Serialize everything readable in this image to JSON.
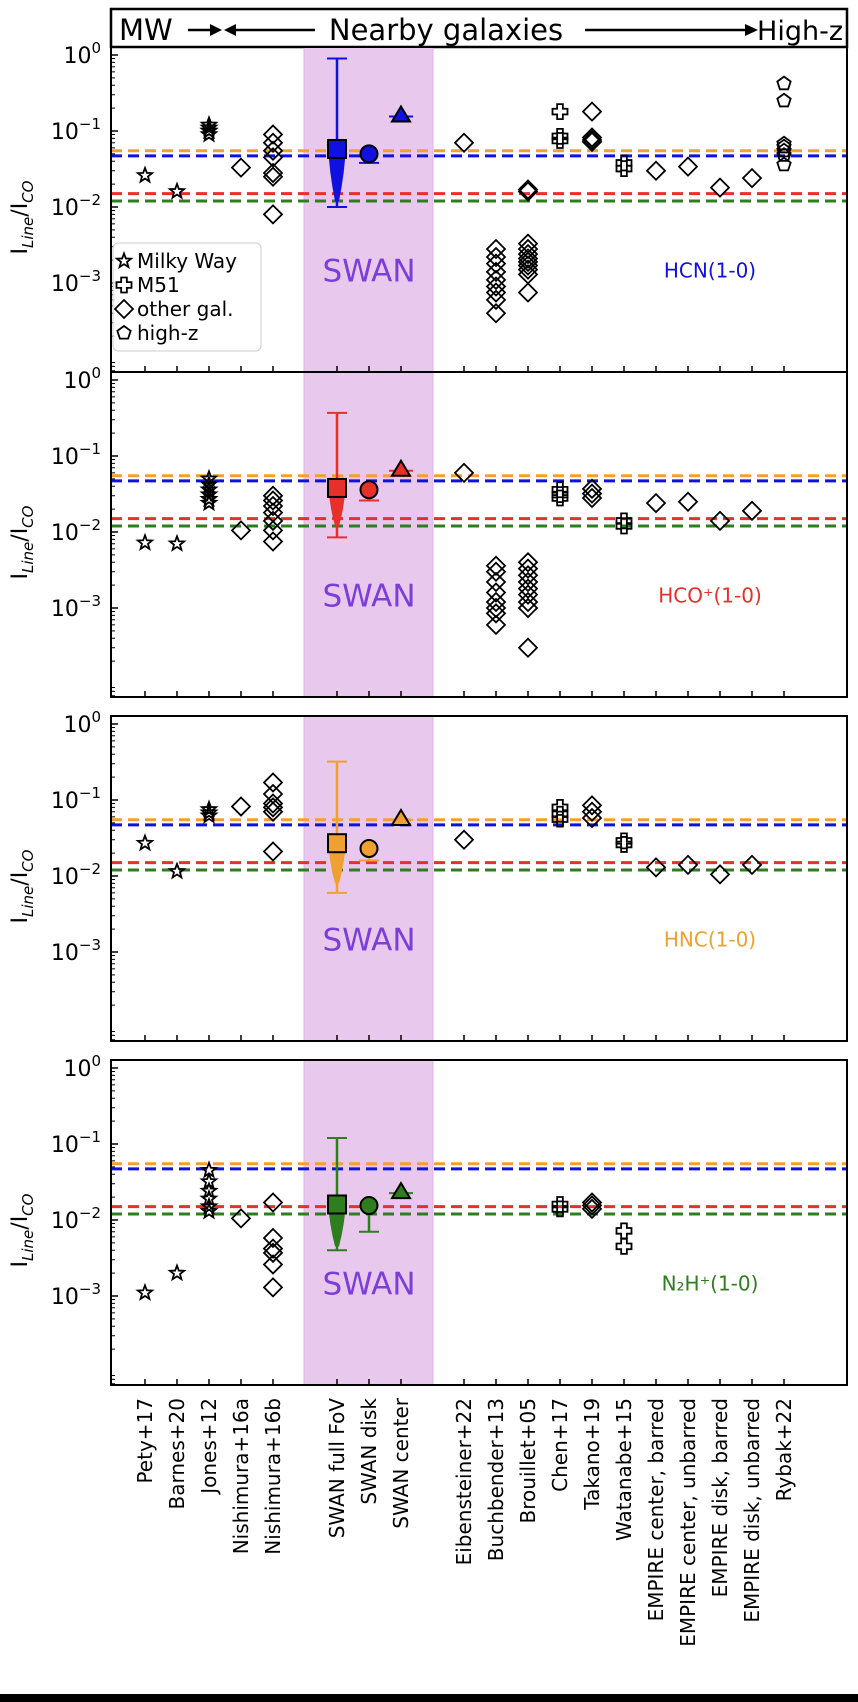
{
  "header": {
    "mw_label": "MW",
    "nearby_label": "Nearby galaxies",
    "highz_label": "High-z"
  },
  "legend": {
    "items": [
      {
        "marker": "star",
        "label": "Milky Way"
      },
      {
        "marker": "cross",
        "label": "M51"
      },
      {
        "marker": "diamond",
        "label": "other gal."
      },
      {
        "marker": "pentagon",
        "label": "high-z"
      }
    ]
  },
  "colors": {
    "hcn": "#1010e0",
    "hcop": "#e8302a",
    "hnc": "#f0a030",
    "n2hp": "#2e7d1e",
    "swan_band": "#e9c8ee",
    "swan_text": "#7b3ed8"
  },
  "chart_data": [
    {
      "type": "scatter",
      "ylabel": "I_Line/I_CO",
      "yscale": "log",
      "ylim": [
        0.00025,
        1.4
      ],
      "yticks": [
        "10^0",
        "10^-1",
        "10^-2",
        "10^-3"
      ],
      "line_label": "HCN(1-0)",
      "line_color": "#1010e0",
      "swan_label": "SWAN",
      "categories": [
        "Pety+17",
        "Barnes+20",
        "Jones+12",
        "Nishimura+16a",
        "Nishimura+16b",
        "SWAN full FoV",
        "SWAN disk",
        "SWAN center",
        "Eibensteiner+22",
        "Buchbender+13",
        "Brouillet+05",
        "Chen+17",
        "Takano+19",
        "Watanabe+15",
        "EMPIRE center, barred",
        "EMPIRE center, unbarred",
        "EMPIRE disk, barred",
        "EMPIRE disk, unbarred",
        "Rybak+22"
      ],
      "reference_lines": [
        {
          "color": "#f0a030",
          "value": 0.055
        },
        {
          "color": "#1010e0",
          "value": 0.047
        },
        {
          "color": "#e8302a",
          "value": 0.015
        },
        {
          "color": "#2e7d1e",
          "value": 0.012
        }
      ],
      "points": [
        {
          "cat": 0,
          "marker": "star",
          "values": [
            0.026
          ]
        },
        {
          "cat": 1,
          "marker": "star",
          "values": [
            0.016
          ]
        },
        {
          "cat": 2,
          "marker": "star",
          "values": [
            0.09,
            0.1,
            0.11,
            0.12,
            0.1
          ]
        },
        {
          "cat": 3,
          "marker": "diamond",
          "values": [
            0.033
          ]
        },
        {
          "cat": 4,
          "marker": "diamond",
          "values": [
            0.09,
            0.07,
            0.055,
            0.045,
            0.028,
            0.025,
            0.008
          ]
        },
        {
          "cat": 8,
          "marker": "diamond",
          "values": [
            0.07
          ]
        },
        {
          "cat": 9,
          "marker": "diamond",
          "values": [
            0.0028,
            0.0022,
            0.0018,
            0.0014,
            0.0011,
            0.0009,
            0.00075,
            0.0006,
            0.0004
          ]
        },
        {
          "cat": 10,
          "marker": "diamond",
          "values": [
            0.017,
            0.016,
            0.0033,
            0.0028,
            0.0024,
            0.0021,
            0.0019,
            0.0017,
            0.0015,
            0.0013,
            0.00075
          ]
        },
        {
          "cat": 11,
          "marker": "cross",
          "values": [
            0.18,
            0.085,
            0.075
          ]
        },
        {
          "cat": 12,
          "marker": "diamond",
          "values": [
            0.18,
            0.082,
            0.076,
            0.072
          ]
        },
        {
          "cat": 13,
          "marker": "cross",
          "values": [
            0.038,
            0.032
          ]
        },
        {
          "cat": 14,
          "marker": "diamond",
          "values": [
            0.03
          ]
        },
        {
          "cat": 15,
          "marker": "diamond",
          "values": [
            0.034
          ]
        },
        {
          "cat": 16,
          "marker": "diamond",
          "values": [
            0.018
          ]
        },
        {
          "cat": 17,
          "marker": "diamond",
          "values": [
            0.024
          ]
        },
        {
          "cat": 18,
          "marker": "pentagon",
          "values": [
            0.42,
            0.25,
            0.068,
            0.062,
            0.055,
            0.048,
            0.036
          ]
        }
      ],
      "swan": {
        "fov": {
          "value": 0.058,
          "err_high": 0.9,
          "err_low": 0.01,
          "violin_low": 0.012,
          "violin_high": 0.07
        },
        "disk": {
          "value": 0.05,
          "err_low": 0.038
        },
        "center": {
          "value": 0.165,
          "err": 0.165
        }
      }
    },
    {
      "type": "scatter",
      "ylabel": "I_Line/I_CO",
      "yscale": "log",
      "ylim": [
        0.00025,
        1.4
      ],
      "yticks": [
        "10^0",
        "10^-1",
        "10^-2",
        "10^-3"
      ],
      "line_label": "HCO⁺(1-0)",
      "line_color": "#e8302a",
      "swan_label": "SWAN",
      "categories": [
        "Pety+17",
        "Barnes+20",
        "Jones+12",
        "Nishimura+16a",
        "Nishimura+16b",
        "SWAN full FoV",
        "SWAN disk",
        "SWAN center",
        "Eibensteiner+22",
        "Buchbender+13",
        "Brouillet+05",
        "Chen+17",
        "Takano+19",
        "Watanabe+15",
        "EMPIRE center, barred",
        "EMPIRE center, unbarred",
        "EMPIRE disk, barred",
        "EMPIRE disk, unbarred",
        "Rybak+22"
      ],
      "reference_lines": [
        {
          "color": "#f0a030",
          "value": 0.055
        },
        {
          "color": "#1010e0",
          "value": 0.047
        },
        {
          "color": "#e8302a",
          "value": 0.015
        },
        {
          "color": "#2e7d1e",
          "value": 0.012
        }
      ],
      "points": [
        {
          "cat": 0,
          "marker": "star",
          "values": [
            0.0072
          ]
        },
        {
          "cat": 1,
          "marker": "star",
          "values": [
            0.007
          ]
        },
        {
          "cat": 2,
          "marker": "star",
          "values": [
            0.05,
            0.042,
            0.036,
            0.031,
            0.027,
            0.024
          ]
        },
        {
          "cat": 3,
          "marker": "diamond",
          "values": [
            0.0105
          ]
        },
        {
          "cat": 4,
          "marker": "diamond",
          "values": [
            0.03,
            0.026,
            0.022,
            0.018,
            0.014,
            0.0105,
            0.0075
          ]
        },
        {
          "cat": 8,
          "marker": "diamond",
          "values": [
            0.06
          ]
        },
        {
          "cat": 9,
          "marker": "diamond",
          "values": [
            0.0036,
            0.003,
            0.0022,
            0.0016,
            0.0012,
            0.001,
            0.00085,
            0.0006
          ]
        },
        {
          "cat": 10,
          "marker": "diamond",
          "values": [
            0.004,
            0.0033,
            0.0027,
            0.0022,
            0.0018,
            0.0015,
            0.0012,
            0.001,
            0.0003
          ]
        },
        {
          "cat": 11,
          "marker": "cross",
          "values": [
            0.036,
            0.031,
            0.028
          ]
        },
        {
          "cat": 12,
          "marker": "diamond",
          "values": [
            0.037,
            0.032,
            0.028
          ]
        },
        {
          "cat": 13,
          "marker": "cross",
          "values": [
            0.014,
            0.012
          ]
        },
        {
          "cat": 14,
          "marker": "diamond",
          "values": [
            0.024
          ]
        },
        {
          "cat": 15,
          "marker": "diamond",
          "values": [
            0.025
          ]
        },
        {
          "cat": 16,
          "marker": "diamond",
          "values": [
            0.014
          ]
        },
        {
          "cat": 17,
          "marker": "diamond",
          "values": [
            0.019
          ]
        }
      ],
      "swan": {
        "fov": {
          "value": 0.038,
          "err_high": 0.37,
          "err_low": 0.0085,
          "violin_low": 0.012,
          "violin_high": 0.045
        },
        "disk": {
          "value": 0.036,
          "err_low": 0.026
        },
        "center": {
          "value": 0.068,
          "err": 0.068
        }
      }
    },
    {
      "type": "scatter",
      "ylabel": "I_Line/I_CO",
      "yscale": "log",
      "ylim": [
        0.00025,
        1.4
      ],
      "yticks": [
        "10^0",
        "10^-1",
        "10^-2",
        "10^-3"
      ],
      "line_label": "HNC(1-0)",
      "line_color": "#f0a030",
      "swan_label": "SWAN",
      "categories": [
        "Pety+17",
        "Barnes+20",
        "Jones+12",
        "Nishimura+16a",
        "Nishimura+16b",
        "SWAN full FoV",
        "SWAN disk",
        "SWAN center",
        "Eibensteiner+22",
        "Buchbender+13",
        "Brouillet+05",
        "Chen+17",
        "Takano+19",
        "Watanabe+15",
        "EMPIRE center, barred",
        "EMPIRE center, unbarred",
        "EMPIRE disk, barred",
        "EMPIRE disk, unbarred",
        "Rybak+22"
      ],
      "reference_lines": [
        {
          "color": "#f0a030",
          "value": 0.055
        },
        {
          "color": "#1010e0",
          "value": 0.047
        },
        {
          "color": "#e8302a",
          "value": 0.015
        },
        {
          "color": "#2e7d1e",
          "value": 0.012
        }
      ],
      "points": [
        {
          "cat": 0,
          "marker": "star",
          "values": [
            0.027
          ]
        },
        {
          "cat": 1,
          "marker": "star",
          "values": [
            0.0115
          ]
        },
        {
          "cat": 2,
          "marker": "star",
          "values": [
            0.075,
            0.068,
            0.062
          ]
        },
        {
          "cat": 3,
          "marker": "diamond",
          "values": [
            0.082
          ]
        },
        {
          "cat": 4,
          "marker": "diamond",
          "values": [
            0.17,
            0.12,
            0.09,
            0.08,
            0.07,
            0.021
          ]
        },
        {
          "cat": 8,
          "marker": "diamond",
          "values": [
            0.03
          ]
        },
        {
          "cat": 11,
          "marker": "cross",
          "values": [
            0.08,
            0.065,
            0.056
          ]
        },
        {
          "cat": 12,
          "marker": "diamond",
          "values": [
            0.085,
            0.07,
            0.058
          ]
        },
        {
          "cat": 13,
          "marker": "cross",
          "values": [
            0.029,
            0.026
          ]
        },
        {
          "cat": 14,
          "marker": "diamond",
          "values": [
            0.013
          ]
        },
        {
          "cat": 15,
          "marker": "diamond",
          "values": [
            0.014
          ]
        },
        {
          "cat": 16,
          "marker": "diamond",
          "values": [
            0.0105
          ]
        },
        {
          "cat": 17,
          "marker": "diamond",
          "values": [
            0.014
          ]
        }
      ],
      "swan": {
        "fov": {
          "value": 0.027,
          "err_high": 0.32,
          "err_low": 0.006,
          "violin_low": 0.008,
          "violin_high": 0.03
        },
        "disk": {
          "value": 0.023,
          "err_low": 0.016
        },
        "center": {
          "value": 0.058,
          "err": 0.058
        }
      }
    },
    {
      "type": "scatter",
      "ylabel": "I_Line/I_CO",
      "yscale": "log",
      "ylim": [
        0.00025,
        1.4
      ],
      "yticks": [
        "10^0",
        "10^-1",
        "10^-2",
        "10^-3"
      ],
      "line_label": "N₂H⁺(1-0)",
      "line_color": "#2e7d1e",
      "swan_label": "SWAN",
      "categories": [
        "Pety+17",
        "Barnes+20",
        "Jones+12",
        "Nishimura+16a",
        "Nishimura+16b",
        "SWAN full FoV",
        "SWAN disk",
        "SWAN center",
        "Eibensteiner+22",
        "Buchbender+13",
        "Brouillet+05",
        "Chen+17",
        "Takano+19",
        "Watanabe+15",
        "EMPIRE center, barred",
        "EMPIRE center, unbarred",
        "EMPIRE disk, barred",
        "EMPIRE disk, unbarred",
        "Rybak+22"
      ],
      "reference_lines": [
        {
          "color": "#f0a030",
          "value": 0.055
        },
        {
          "color": "#1010e0",
          "value": 0.047
        },
        {
          "color": "#e8302a",
          "value": 0.015
        },
        {
          "color": "#2e7d1e",
          "value": 0.012
        }
      ],
      "points": [
        {
          "cat": 0,
          "marker": "star",
          "values": [
            0.0011
          ]
        },
        {
          "cat": 1,
          "marker": "star",
          "values": [
            0.002
          ]
        },
        {
          "cat": 2,
          "marker": "star",
          "values": [
            0.045,
            0.032,
            0.024,
            0.019,
            0.015,
            0.013
          ]
        },
        {
          "cat": 3,
          "marker": "diamond",
          "values": [
            0.0105
          ]
        },
        {
          "cat": 4,
          "marker": "diamond",
          "values": [
            0.017,
            0.0058,
            0.0042,
            0.0037,
            0.0026,
            0.0013
          ]
        },
        {
          "cat": 11,
          "marker": "cross",
          "values": [
            0.016,
            0.014
          ]
        },
        {
          "cat": 12,
          "marker": "diamond",
          "values": [
            0.017,
            0.0155,
            0.014
          ]
        },
        {
          "cat": 13,
          "marker": "cross",
          "values": [
            0.0072,
            0.0045
          ]
        }
      ],
      "swan": {
        "fov": {
          "value": 0.016,
          "err_high": 0.12,
          "err_low": 0.004,
          "violin_low": 0.0045,
          "violin_high": 0.018
        },
        "disk": {
          "value": 0.0155,
          "err_low": 0.007
        },
        "center": {
          "value": 0.024,
          "err": 0.024
        }
      }
    }
  ]
}
